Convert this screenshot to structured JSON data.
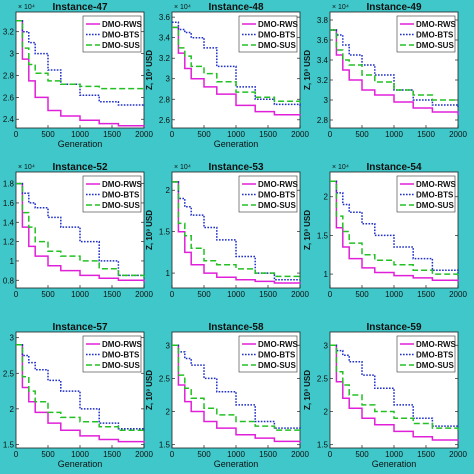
{
  "colors": {
    "background": "#3fc7c9",
    "series": {
      "DMO-RWS": "#e020d8",
      "DMO-BTS": "#1f2fc8",
      "DMO-SUS": "#22c022"
    }
  },
  "legend": [
    "DMO-RWS",
    "DMO-BTS",
    "DMO-SUS"
  ],
  "chart_data": [
    {
      "type": "line",
      "title": "Instance-47",
      "xlabel": "Generation",
      "ylabel": "",
      "y_exponent": "× 10⁴",
      "xlim": [
        0,
        2000
      ],
      "ylim": [
        2.32,
        3.38
      ],
      "yticks": [
        2.4,
        2.6,
        2.8,
        3,
        3.2
      ],
      "xticks": [
        0,
        500,
        1000,
        1500,
        2000
      ],
      "legend_position": "top-right",
      "x": [
        0,
        100,
        200,
        300,
        500,
        700,
        1000,
        1300,
        1600,
        2000
      ],
      "series": [
        {
          "name": "DMO-RWS",
          "values": [
            3.3,
            2.95,
            2.75,
            2.6,
            2.48,
            2.43,
            2.39,
            2.36,
            2.34,
            2.33
          ]
        },
        {
          "name": "DMO-BTS",
          "values": [
            3.3,
            3.2,
            3.1,
            3.0,
            2.85,
            2.72,
            2.62,
            2.56,
            2.53,
            2.52
          ]
        },
        {
          "name": "DMO-SUS",
          "values": [
            3.3,
            3.05,
            2.9,
            2.82,
            2.75,
            2.72,
            2.7,
            2.68,
            2.68,
            2.68
          ]
        }
      ]
    },
    {
      "type": "line",
      "title": "Instance-48",
      "xlabel": "Generation",
      "ylabel": "Z, 10³ USD",
      "y_exponent": "× 10⁴",
      "xlim": [
        0,
        2000
      ],
      "ylim": [
        2.52,
        3.65
      ],
      "yticks": [
        2.6,
        2.8,
        3,
        3.2,
        3.4,
        3.6
      ],
      "xticks": [
        0,
        500,
        1000,
        1500,
        2000
      ],
      "legend_position": "top-right",
      "x": [
        0,
        100,
        200,
        300,
        500,
        700,
        1000,
        1300,
        1600,
        2000
      ],
      "series": [
        {
          "name": "DMO-RWS",
          "values": [
            3.5,
            3.25,
            3.1,
            3.0,
            2.92,
            2.85,
            2.74,
            2.68,
            2.65,
            2.64
          ]
        },
        {
          "name": "DMO-BTS",
          "values": [
            3.55,
            3.48,
            3.45,
            3.4,
            3.3,
            3.12,
            2.92,
            2.8,
            2.75,
            2.72
          ]
        },
        {
          "name": "DMO-SUS",
          "values": [
            3.5,
            3.3,
            3.22,
            3.12,
            3.05,
            2.97,
            2.87,
            2.82,
            2.78,
            2.77
          ]
        }
      ]
    },
    {
      "type": "line",
      "title": "Instance-49",
      "xlabel": "",
      "ylabel": "Z, 10³ USD",
      "y_exponent": "× 10⁴",
      "xlim": [
        0,
        2000
      ],
      "ylim": [
        2.72,
        3.88
      ],
      "yticks": [
        2.8,
        3,
        3.2,
        3.4,
        3.6,
        3.8
      ],
      "xticks": [
        0,
        500,
        1000,
        1500,
        2000
      ],
      "legend_position": "top-right",
      "x": [
        0,
        100,
        200,
        300,
        500,
        700,
        1000,
        1300,
        1600,
        2000
      ],
      "series": [
        {
          "name": "DMO-RWS",
          "values": [
            3.7,
            3.45,
            3.3,
            3.2,
            3.1,
            3.05,
            2.98,
            2.92,
            2.88,
            2.85
          ]
        },
        {
          "name": "DMO-BTS",
          "values": [
            3.7,
            3.65,
            3.55,
            3.45,
            3.35,
            3.25,
            3.1,
            3.0,
            2.95,
            2.93
          ]
        },
        {
          "name": "DMO-SUS",
          "values": [
            3.7,
            3.5,
            3.4,
            3.35,
            3.25,
            3.18,
            3.1,
            3.05,
            3.0,
            3.0
          ]
        }
      ]
    },
    {
      "type": "line",
      "title": "Instance-52",
      "xlabel": "",
      "ylabel": "",
      "y_exponent": "× 10⁴",
      "xlim": [
        0,
        2000
      ],
      "ylim": [
        0.72,
        1.92
      ],
      "yticks": [
        0.8,
        1,
        1.2,
        1.4,
        1.6,
        1.8
      ],
      "xticks": [
        0,
        500,
        1000,
        1500,
        2000
      ],
      "legend_position": "top-right",
      "x": [
        0,
        100,
        200,
        300,
        500,
        700,
        1000,
        1300,
        1600,
        2000
      ],
      "series": [
        {
          "name": "DMO-RWS",
          "values": [
            1.8,
            1.35,
            1.15,
            1.05,
            0.95,
            0.9,
            0.85,
            0.82,
            0.8,
            0.78
          ]
        },
        {
          "name": "DMO-BTS",
          "values": [
            1.8,
            1.7,
            1.6,
            1.55,
            1.45,
            1.35,
            1.2,
            1.0,
            0.85,
            0.82
          ]
        },
        {
          "name": "DMO-SUS",
          "values": [
            1.8,
            1.5,
            1.35,
            1.2,
            1.1,
            1.05,
            1.0,
            0.92,
            0.85,
            0.8
          ]
        }
      ]
    },
    {
      "type": "line",
      "title": "Instance-53",
      "xlabel": "",
      "ylabel": "Z, 10³ USD",
      "y_exponent": "× 10⁴",
      "xlim": [
        0,
        2000
      ],
      "ylim": [
        0.82,
        2.22
      ],
      "yticks": [
        1,
        1.5,
        2
      ],
      "xticks": [
        0,
        500,
        1000,
        1500,
        2000
      ],
      "legend_position": "top-right",
      "x": [
        0,
        100,
        200,
        300,
        500,
        700,
        1000,
        1300,
        1600,
        2000
      ],
      "series": [
        {
          "name": "DMO-RWS",
          "values": [
            2.1,
            1.5,
            1.25,
            1.1,
            1.0,
            0.95,
            0.92,
            0.9,
            0.88,
            0.87
          ]
        },
        {
          "name": "DMO-BTS",
          "values": [
            2.1,
            1.9,
            1.8,
            1.7,
            1.55,
            1.4,
            1.2,
            1.0,
            0.92,
            0.9
          ]
        },
        {
          "name": "DMO-SUS",
          "values": [
            2.1,
            1.6,
            1.45,
            1.3,
            1.15,
            1.1,
            1.05,
            1.0,
            0.96,
            0.92
          ]
        }
      ]
    },
    {
      "type": "line",
      "title": "Instance-54",
      "xlabel": "",
      "ylabel": "Z, 10³ USD",
      "y_exponent": "× 10⁴",
      "xlim": [
        0,
        2000
      ],
      "ylim": [
        0.82,
        2.32
      ],
      "yticks": [
        1,
        1.5,
        2
      ],
      "xticks": [
        0,
        500,
        1000,
        1500,
        2000
      ],
      "legend_position": "top-right",
      "x": [
        0,
        100,
        200,
        300,
        500,
        700,
        1000,
        1300,
        1600,
        2000
      ],
      "series": [
        {
          "name": "DMO-RWS",
          "values": [
            2.2,
            1.6,
            1.35,
            1.2,
            1.08,
            1.02,
            0.98,
            0.95,
            0.92,
            0.9
          ]
        },
        {
          "name": "DMO-BTS",
          "values": [
            2.2,
            2.05,
            1.9,
            1.8,
            1.65,
            1.5,
            1.35,
            1.2,
            1.05,
            0.98
          ]
        },
        {
          "name": "DMO-SUS",
          "values": [
            2.2,
            1.75,
            1.55,
            1.4,
            1.25,
            1.18,
            1.12,
            1.05,
            1.0,
            0.98
          ]
        }
      ]
    },
    {
      "type": "line",
      "title": "Instance-57",
      "xlabel": "Generation",
      "ylabel": "",
      "y_exponent": "",
      "xlim": [
        0,
        2000
      ],
      "ylim": [
        1.45,
        3.08
      ],
      "yticks": [
        1.5,
        2,
        2.5,
        3
      ],
      "xticks": [
        0,
        500,
        1000,
        1500,
        2000
      ],
      "legend_position": "top-right",
      "x": [
        0,
        100,
        200,
        300,
        500,
        700,
        1000,
        1300,
        1600,
        2000
      ],
      "series": [
        {
          "name": "DMO-RWS",
          "values": [
            2.9,
            2.3,
            2.1,
            1.95,
            1.8,
            1.7,
            1.62,
            1.57,
            1.54,
            1.52
          ]
        },
        {
          "name": "DMO-BTS",
          "values": [
            2.9,
            2.75,
            2.65,
            2.55,
            2.4,
            2.25,
            2.0,
            1.8,
            1.72,
            1.7
          ]
        },
        {
          "name": "DMO-SUS",
          "values": [
            2.9,
            2.45,
            2.25,
            2.1,
            1.95,
            1.88,
            1.82,
            1.75,
            1.7,
            1.66
          ]
        }
      ]
    },
    {
      "type": "line",
      "title": "Instance-58",
      "xlabel": "Generation",
      "ylabel": "Z, 10³ USD",
      "y_exponent": "",
      "xlim": [
        0,
        2000
      ],
      "ylim": [
        1.45,
        3.2
      ],
      "yticks": [
        1.5,
        2,
        2.5,
        3
      ],
      "xticks": [
        0,
        500,
        1000,
        1500,
        2000
      ],
      "legend_position": "top-right",
      "x": [
        0,
        100,
        200,
        300,
        500,
        700,
        1000,
        1300,
        1600,
        2000
      ],
      "series": [
        {
          "name": "DMO-RWS",
          "values": [
            3.0,
            2.4,
            2.15,
            2.0,
            1.85,
            1.75,
            1.65,
            1.6,
            1.55,
            1.53
          ]
        },
        {
          "name": "DMO-BTS",
          "values": [
            3.0,
            2.9,
            2.8,
            2.7,
            2.5,
            2.3,
            2.1,
            1.85,
            1.75,
            1.72
          ]
        },
        {
          "name": "DMO-SUS",
          "values": [
            3.0,
            2.55,
            2.35,
            2.2,
            2.05,
            1.95,
            1.85,
            1.78,
            1.72,
            1.68
          ]
        }
      ]
    },
    {
      "type": "line",
      "title": "Instance-59",
      "xlabel": "Generation",
      "ylabel": "Z, 10³ USD",
      "y_exponent": "",
      "xlim": [
        0,
        2000
      ],
      "ylim": [
        1.45,
        3.2
      ],
      "yticks": [
        1.5,
        2,
        2.5,
        3
      ],
      "xticks": [
        0,
        500,
        1000,
        1500,
        2000
      ],
      "legend_position": "top-right",
      "x": [
        0,
        100,
        200,
        300,
        500,
        700,
        1000,
        1300,
        1600,
        2000
      ],
      "series": [
        {
          "name": "DMO-RWS",
          "values": [
            3.0,
            2.45,
            2.2,
            2.05,
            1.9,
            1.8,
            1.7,
            1.62,
            1.57,
            1.55
          ]
        },
        {
          "name": "DMO-BTS",
          "values": [
            3.0,
            2.92,
            2.85,
            2.75,
            2.55,
            2.35,
            2.1,
            1.9,
            1.78,
            1.75
          ]
        },
        {
          "name": "DMO-SUS",
          "values": [
            3.0,
            2.6,
            2.4,
            2.25,
            2.1,
            2.0,
            1.9,
            1.82,
            1.75,
            1.72
          ]
        }
      ]
    }
  ]
}
